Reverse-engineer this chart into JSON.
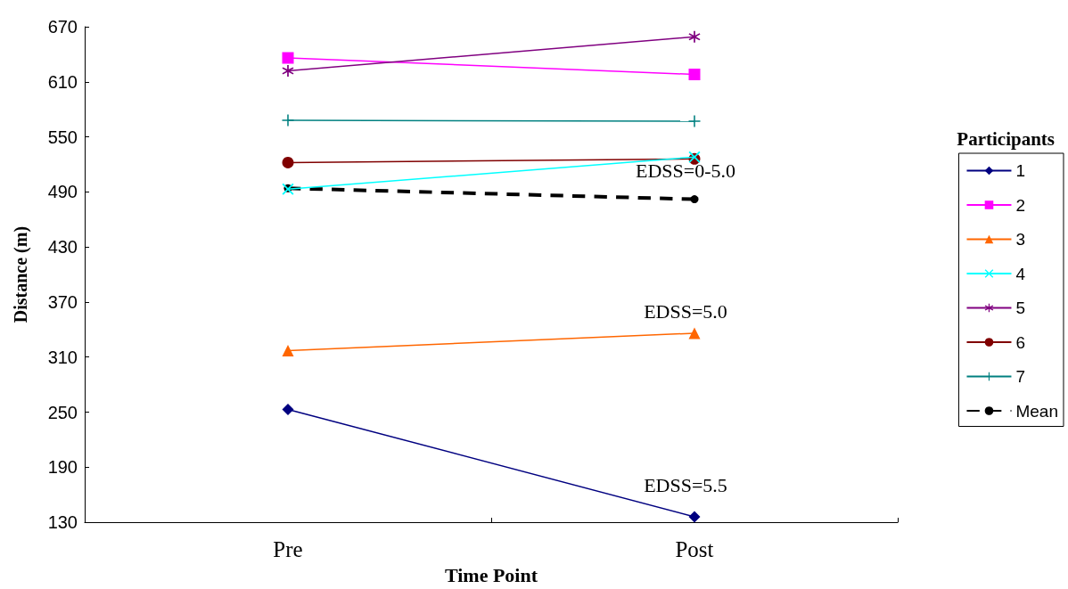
{
  "chart_data": {
    "type": "line",
    "xlabel": "Time Point",
    "ylabel": "Distance (m)",
    "legend_title": "Participants",
    "categories": [
      "Pre",
      "Post"
    ],
    "series": [
      {
        "name": "1",
        "color": "#000080",
        "values": [
          253,
          136
        ],
        "marker": "diamond"
      },
      {
        "name": "2",
        "color": "#ff00ff",
        "values": [
          636,
          618
        ],
        "marker": "square"
      },
      {
        "name": "3",
        "color": "#ff6600",
        "values": [
          317,
          336
        ],
        "marker": "triangle"
      },
      {
        "name": "4",
        "color": "#00ffff",
        "values": [
          493,
          528
        ],
        "marker": "cross"
      },
      {
        "name": "5",
        "color": "#800080",
        "values": [
          622,
          659
        ],
        "marker": "star"
      },
      {
        "name": "6",
        "color": "#800000",
        "values": [
          522,
          526
        ],
        "marker": "circle"
      },
      {
        "name": "7",
        "color": "#008080",
        "values": [
          568,
          567
        ],
        "marker": "plus"
      },
      {
        "name": "Mean",
        "color": "#000000",
        "values": [
          494,
          482
        ],
        "marker": "circle",
        "line_style": "dashed"
      }
    ],
    "ylim": [
      130,
      670
    ],
    "yticks": [
      130,
      190,
      250,
      310,
      370,
      430,
      490,
      550,
      610,
      670
    ],
    "grid": false,
    "legend": "right",
    "line_style": "solid",
    "annotations": [
      "EDSS=0-5.0",
      "EDSS=5.0",
      "EDSS=5.5"
    ]
  }
}
